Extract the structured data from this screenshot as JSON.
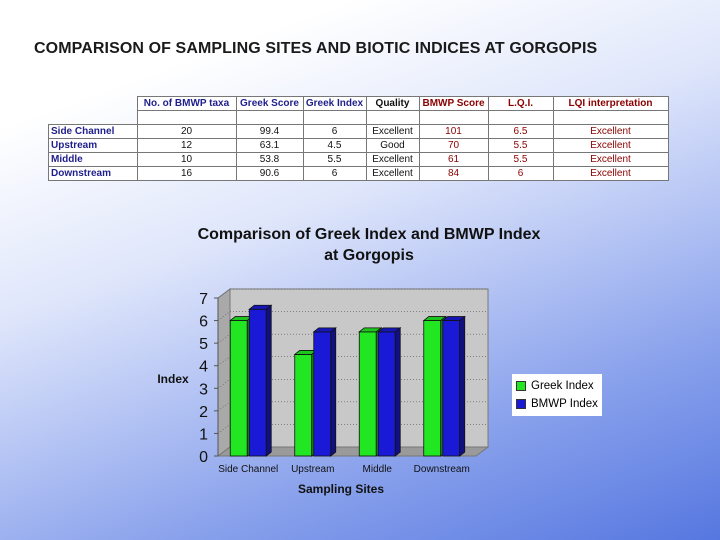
{
  "slide": {
    "title": "COMPARISON OF SAMPLING SITES AND BIOTIC INDICES AT GORGOPIS"
  },
  "table": {
    "headers": [
      "No. of BMWP taxa",
      "Greek Score",
      "Greek Index",
      "Quality",
      "BMWP Score",
      "L.Q.I.",
      "LQI interpretation"
    ],
    "rows": [
      {
        "site": "Side Channel",
        "taxa": "20",
        "greek_score": "99.4",
        "greek_index": "6",
        "quality": "Excellent",
        "bmwp_score": "101",
        "lqi": "6.5",
        "lqi_interp": "Excellent"
      },
      {
        "site": "Upstream",
        "taxa": "12",
        "greek_score": "63.1",
        "greek_index": "4.5",
        "quality": "Good",
        "bmwp_score": "70",
        "lqi": "5.5",
        "lqi_interp": "Excellent"
      },
      {
        "site": "Middle",
        "taxa": "10",
        "greek_score": "53.8",
        "greek_index": "5.5",
        "quality": "Excellent",
        "bmwp_score": "61",
        "lqi": "5.5",
        "lqi_interp": "Excellent"
      },
      {
        "site": "Downstream",
        "taxa": "16",
        "greek_score": "90.6",
        "greek_index": "6",
        "quality": "Excellent",
        "bmwp_score": "84",
        "lqi": "6",
        "lqi_interp": "Excellent"
      }
    ]
  },
  "chart_data": {
    "type": "bar",
    "title_line1": "Comparison of Greek Index and BMWP Index",
    "title_line2": "at Gorgopis",
    "xlabel": "Sampling Sites",
    "ylabel": "Index",
    "categories": [
      "Side Channel",
      "Upstream",
      "Middle",
      "Downstream"
    ],
    "series": [
      {
        "name": "Greek Index",
        "values": [
          6,
          4.5,
          5.5,
          6
        ],
        "color": "#22e622"
      },
      {
        "name": "BMWP Index",
        "values": [
          6.5,
          5.5,
          5.5,
          6
        ],
        "color": "#1a1ad6"
      }
    ],
    "ylim": [
      0,
      7
    ],
    "yticks": [
      "0",
      "1",
      "2",
      "3",
      "4",
      "5",
      "6",
      "7"
    ],
    "grid": true,
    "three_d": true,
    "legend_position": "right"
  }
}
